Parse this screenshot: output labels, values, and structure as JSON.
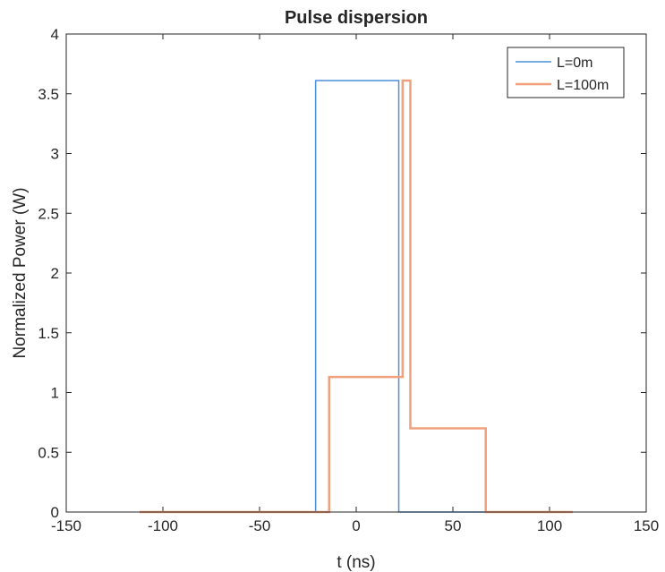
{
  "chart_data": {
    "type": "line",
    "title": "Pulse dispersion",
    "xlabel": "t (ns)",
    "ylabel": "Normalized Power (W)",
    "xlim": [
      -150,
      150
    ],
    "ylim": [
      0,
      4
    ],
    "xticks": [
      -150,
      -100,
      -50,
      0,
      50,
      100,
      150
    ],
    "yticks": [
      0,
      0.5,
      1,
      1.5,
      2,
      2.5,
      3,
      3.5,
      4
    ],
    "xtick_labels": [
      "-150",
      "-100",
      "-50",
      "0",
      "50",
      "100",
      "150"
    ],
    "ytick_labels": [
      "0",
      "0.5",
      "1",
      "1.5",
      "2",
      "2.5",
      "3",
      "3.5",
      "4"
    ],
    "grid": false,
    "legend_position": "top-right",
    "series": [
      {
        "name": "L=0m",
        "color": "#4c8fdc",
        "x": [
          -112,
          -21,
          -21,
          22,
          22,
          112
        ],
        "y": [
          0,
          0,
          3.61,
          3.61,
          0,
          0
        ]
      },
      {
        "name": "L=100m",
        "color": "#f0a07c",
        "x": [
          -112,
          -14,
          -14,
          24,
          24,
          28,
          28,
          67,
          67,
          112
        ],
        "y": [
          0,
          0,
          1.13,
          1.13,
          3.61,
          3.61,
          0.7,
          0.7,
          0,
          0
        ]
      }
    ]
  }
}
